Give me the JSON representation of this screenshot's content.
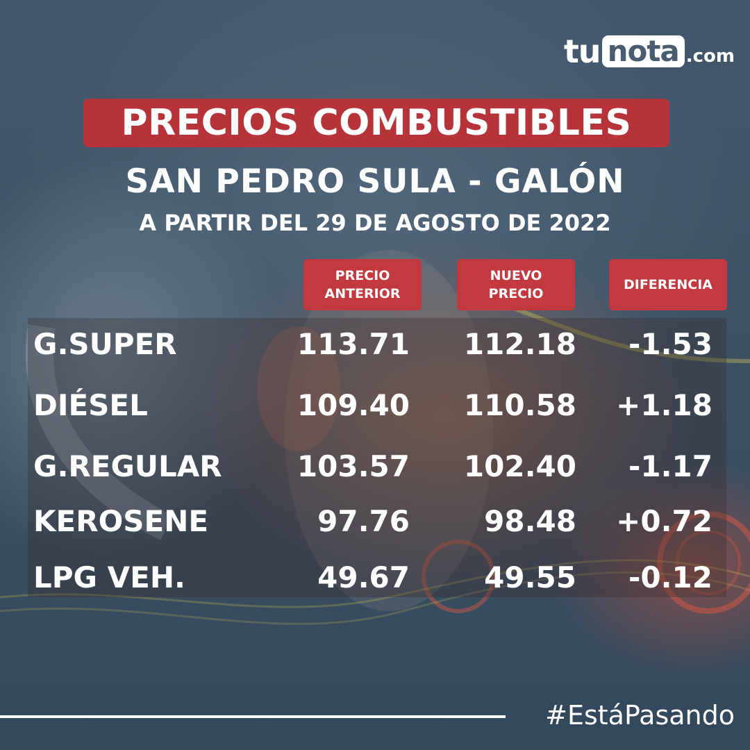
{
  "brand": {
    "part1": "tu",
    "part2": "nota",
    "part3": ".com"
  },
  "title": "PRECIOS COMBUSTIBLES",
  "subtitle": "SAN PEDRO SULA - GALÓN",
  "date_line": "A PARTIR DEL 29 DE AGOSTO DE 2022",
  "columns": [
    "PRECIO\nANTERIOR",
    "NUEVO\nPRECIO",
    "DIFERENCIA"
  ],
  "rows": [
    {
      "name": "G.SUPER",
      "previous": "113.71",
      "new": "112.18",
      "difference": "-1.53"
    },
    {
      "name": "DIÉSEL",
      "previous": "109.40",
      "new": "110.58",
      "difference": "+1.18"
    },
    {
      "name": "G.REGULAR",
      "previous": "103.57",
      "new": "102.40",
      "difference": "-1.17"
    },
    {
      "name": "KEROSENE",
      "previous": "97.76",
      "new": "98.48",
      "difference": "+0.72"
    },
    {
      "name": "LPG VEH.",
      "previous": "49.67",
      "new": "49.55",
      "difference": "-0.12"
    }
  ],
  "hashtag": "#EstáPasando",
  "colors": {
    "accent_red": "#c23a40",
    "title_red": "#b7333a",
    "background": "#3e5266"
  }
}
